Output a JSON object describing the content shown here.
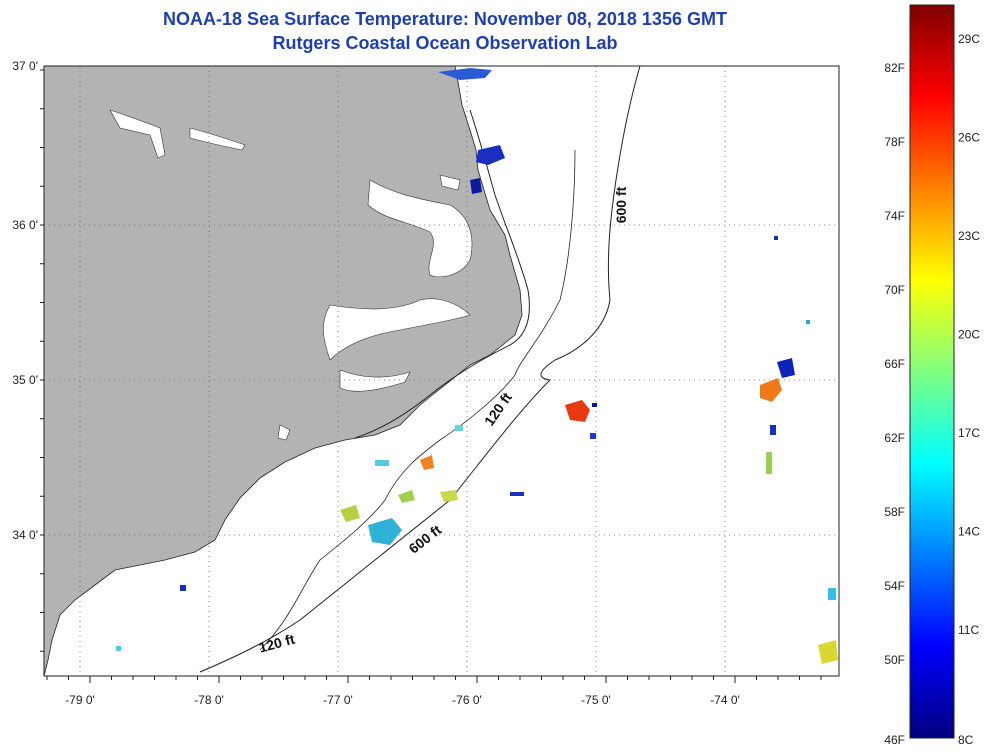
{
  "title": {
    "line1": "NOAA-18 Sea Surface Temperature:  November 08, 2018 1356 GMT",
    "line2": "Rutgers Coastal Ocean Observation Lab"
  },
  "axes": {
    "lat_labels": [
      "37 0'",
      "36 0'",
      "35 0'",
      "34 0'"
    ],
    "lon_labels": [
      "-79 0'",
      "-78 0'",
      "-77 0'",
      "-76 0'",
      "-75 0'",
      "-74 0'"
    ]
  },
  "contours": {
    "label_600_north": "600 ft",
    "label_120_mid": "120 ft",
    "label_600_south": "600 ft",
    "label_120_south": "120 ft"
  },
  "colorbar": {
    "fahrenheit_labels": [
      "82F",
      "78F",
      "74F",
      "70F",
      "66F",
      "62F",
      "58F",
      "54F",
      "50F",
      "46F"
    ],
    "celsius_labels": [
      "29C",
      "26C",
      "23C",
      "20C",
      "17C",
      "14C",
      "11C",
      "8C"
    ]
  },
  "colors": {
    "land": "#b3b3b3",
    "title": "#1f3fb0",
    "scale_stops": [
      "#7f0000",
      "#ff0000",
      "#ff8000",
      "#ffff00",
      "#80ff80",
      "#00ffff",
      "#0080ff",
      "#0000ff",
      "#00007f"
    ]
  }
}
